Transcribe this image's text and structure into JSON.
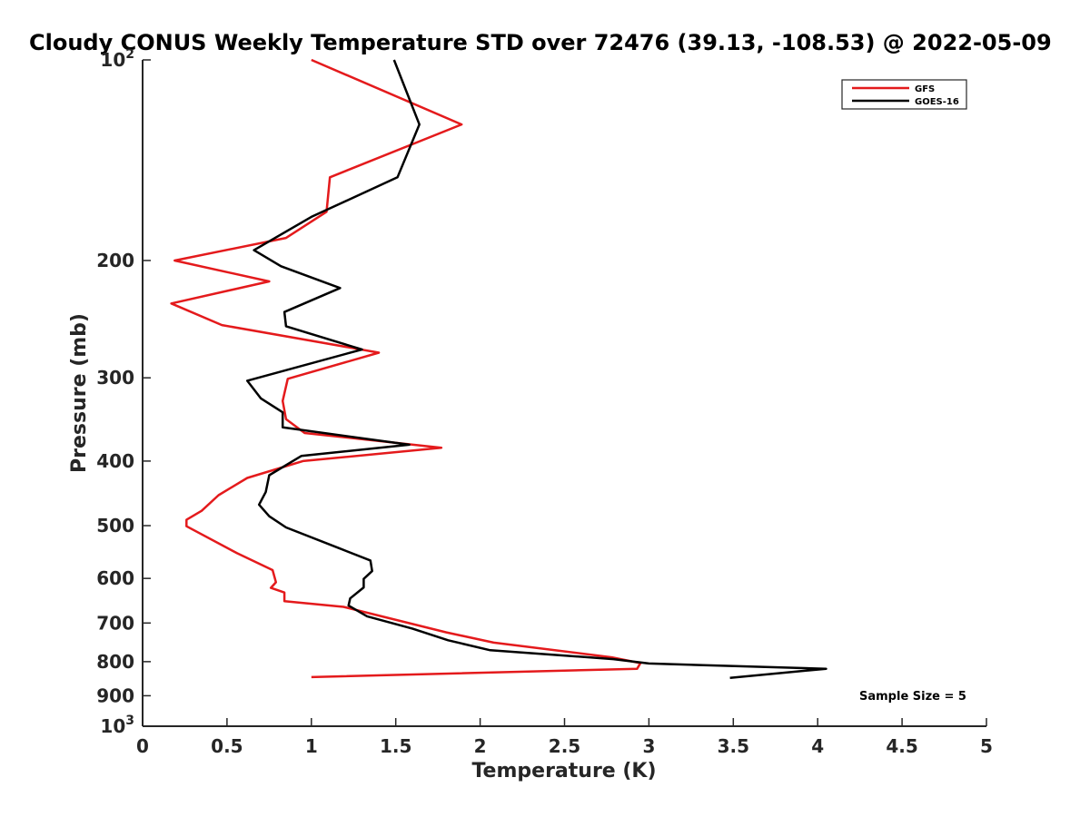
{
  "chart_data": {
    "type": "line",
    "title": "Cloudy CONUS Weekly Temperature STD over 72476 (39.13, -108.53) @ 2022-05-09",
    "xlabel": "Temperature (K)",
    "ylabel": "Pressure (mb)",
    "xlim": [
      0,
      5
    ],
    "ylim": [
      100,
      1000
    ],
    "y_scale": "log",
    "y_reversed": true,
    "x_ticks": [
      "0",
      "0.5",
      "1",
      "1.5",
      "2",
      "2.5",
      "3",
      "3.5",
      "4",
      "4.5",
      "5"
    ],
    "y_ticks": [
      {
        "value": 100,
        "base": "10",
        "exp": "2"
      },
      {
        "value": 200,
        "label": "200"
      },
      {
        "value": 300,
        "label": "300"
      },
      {
        "value": 400,
        "label": "400"
      },
      {
        "value": 500,
        "label": "500"
      },
      {
        "value": 600,
        "label": "600"
      },
      {
        "value": 700,
        "label": "700"
      },
      {
        "value": 800,
        "label": "800"
      },
      {
        "value": 900,
        "label": "900"
      },
      {
        "value": 1000,
        "base": "10",
        "exp": "3"
      }
    ],
    "grid": false,
    "legend_position": "top-right",
    "annotation": "Sample Size = 5",
    "series": [
      {
        "name": "GFS",
        "color": "#e41a1c",
        "points": [
          [
            1.0,
            100
          ],
          [
            1.89,
            125
          ],
          [
            1.11,
            150
          ],
          [
            1.09,
            169
          ],
          [
            0.85,
            185
          ],
          [
            0.19,
            200
          ],
          [
            0.75,
            215
          ],
          [
            0.17,
            232
          ],
          [
            0.47,
            250
          ],
          [
            1.4,
            275
          ],
          [
            0.86,
            301
          ],
          [
            0.83,
            325
          ],
          [
            0.85,
            346
          ],
          [
            0.96,
            363
          ],
          [
            1.77,
            382
          ],
          [
            0.95,
            400
          ],
          [
            0.62,
            424
          ],
          [
            0.45,
            450
          ],
          [
            0.35,
            475
          ],
          [
            0.26,
            490
          ],
          [
            0.26,
            501
          ],
          [
            0.56,
            550
          ],
          [
            0.77,
            583
          ],
          [
            0.79,
            608
          ],
          [
            0.76,
            620
          ],
          [
            0.84,
            630
          ],
          [
            0.84,
            649
          ],
          [
            1.19,
            662
          ],
          [
            1.8,
            723
          ],
          [
            2.08,
            749
          ],
          [
            2.78,
            788
          ],
          [
            2.95,
            804
          ],
          [
            2.93,
            820
          ],
          [
            1.0,
            844
          ]
        ]
      },
      {
        "name": "GOES-16",
        "color": "#000000",
        "points": [
          [
            1.49,
            100
          ],
          [
            1.64,
            125
          ],
          [
            1.51,
            150
          ],
          [
            1.0,
            172
          ],
          [
            0.66,
            193
          ],
          [
            0.82,
            204
          ],
          [
            1.17,
            220
          ],
          [
            0.84,
            239
          ],
          [
            0.85,
            251
          ],
          [
            1.3,
            272
          ],
          [
            0.62,
            303
          ],
          [
            0.7,
            322
          ],
          [
            0.83,
            338
          ],
          [
            0.83,
            356
          ],
          [
            1.58,
            378
          ],
          [
            0.94,
            393
          ],
          [
            0.75,
            420
          ],
          [
            0.73,
            445
          ],
          [
            0.69,
            465
          ],
          [
            0.75,
            484
          ],
          [
            0.85,
            503
          ],
          [
            1.16,
            540
          ],
          [
            1.35,
            564
          ],
          [
            1.36,
            585
          ],
          [
            1.31,
            601
          ],
          [
            1.31,
            619
          ],
          [
            1.23,
            643
          ],
          [
            1.22,
            659
          ],
          [
            1.33,
            684
          ],
          [
            1.6,
            714
          ],
          [
            1.81,
            743
          ],
          [
            2.06,
            769
          ],
          [
            2.79,
            793
          ],
          [
            3.0,
            805
          ],
          [
            4.05,
            820
          ],
          [
            3.48,
            846
          ]
        ]
      }
    ]
  }
}
